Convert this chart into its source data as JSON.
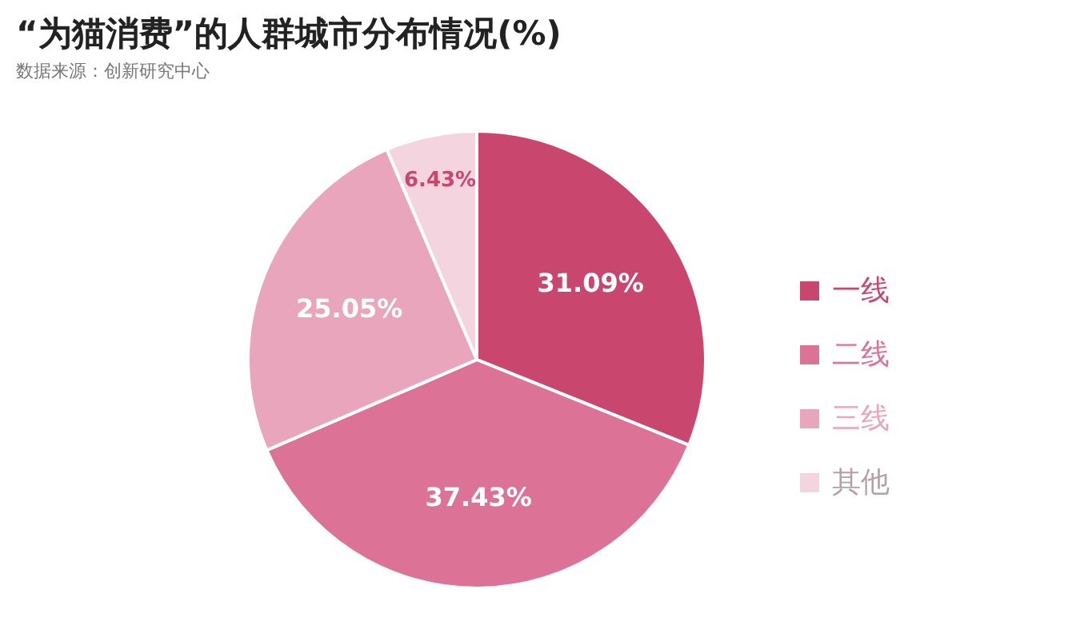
{
  "chart_data": {
    "type": "pie",
    "title": "“为猫消费”的人群城市分布情况(%)",
    "annotations": [
      "数据来源：创新研究中心"
    ],
    "categories": [
      "一线",
      "二线",
      "三线",
      "其他"
    ],
    "values": [
      31.09,
      37.43,
      25.05,
      6.43
    ],
    "colors": [
      "#c9476f",
      "#dc7396",
      "#e8a5bb",
      "#f4d4de"
    ],
    "value_labels": [
      "31.09%",
      "37.43%",
      "25.05%",
      "6.43%"
    ],
    "legend": "right"
  }
}
